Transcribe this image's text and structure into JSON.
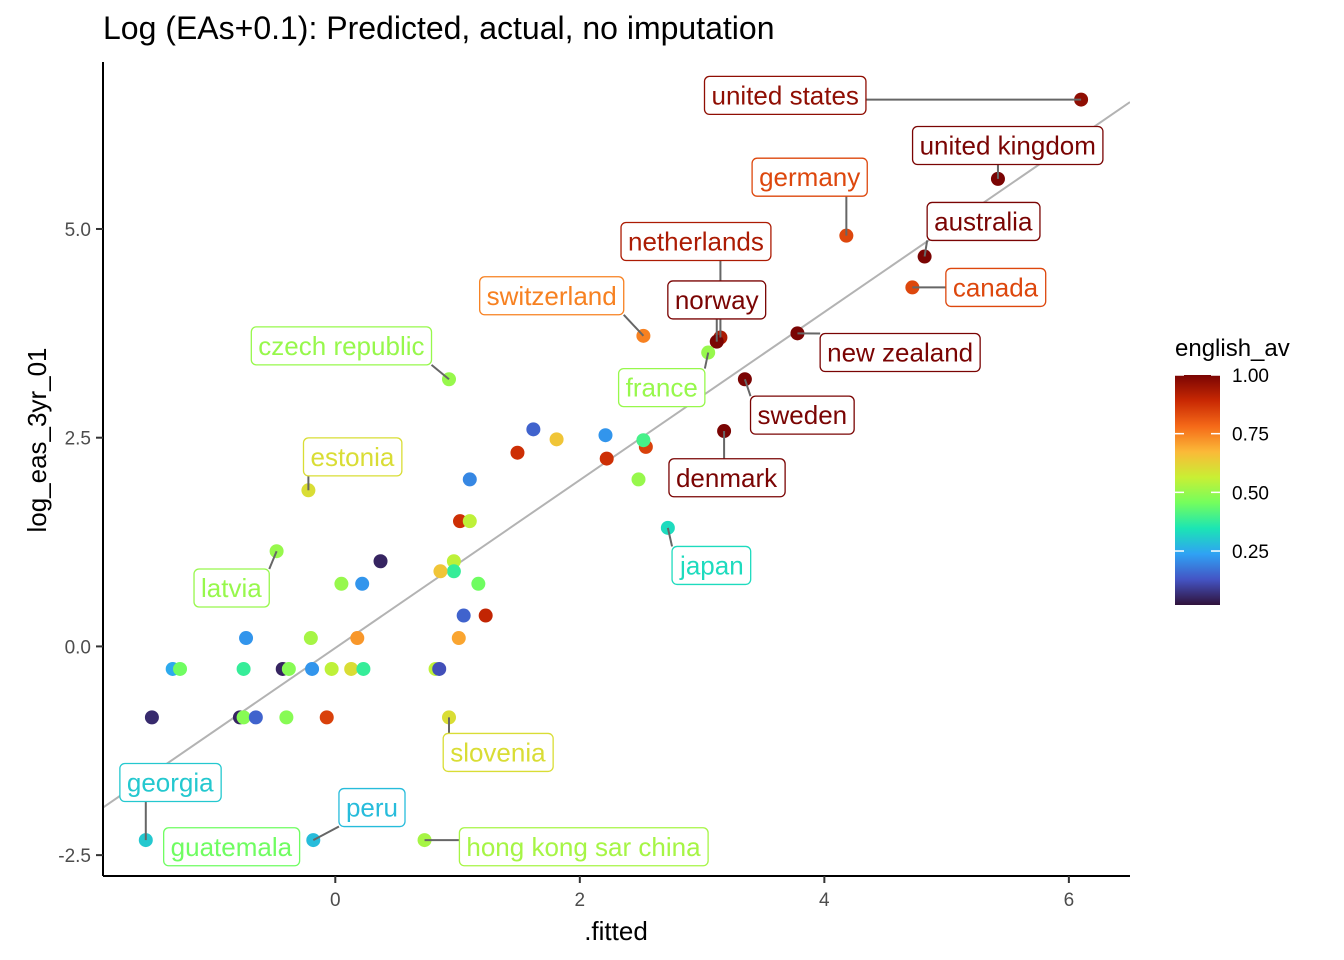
{
  "chart_data": {
    "type": "scatter",
    "title": "Log (EAs+0.1): Predicted, actual, no imputation",
    "xlabel": ".fitted",
    "ylabel": "log_eas_3yr_01",
    "xlim": [
      -1.9,
      6.5
    ],
    "ylim": [
      -2.75,
      7.0
    ],
    "x_ticks": [
      {
        "value": 0,
        "label": "0"
      },
      {
        "value": 2,
        "label": "2"
      },
      {
        "value": 4,
        "label": "4"
      },
      {
        "value": 6,
        "label": "6"
      }
    ],
    "y_ticks": [
      {
        "value": -2.5,
        "label": "-2.5"
      },
      {
        "value": 0,
        "label": "0.0"
      },
      {
        "value": 2.5,
        "label": "2.5"
      },
      {
        "value": 5,
        "label": "5.0"
      }
    ],
    "grid": false,
    "fit_line": {
      "x1": -1.9,
      "y1": -1.93,
      "x2": 6.5,
      "y2": 6.52,
      "color": "#b3b3b3"
    },
    "legend": {
      "title": "english_av",
      "position": "right",
      "colorscale": [
        "#30123b",
        "#4454c4",
        "#2fa2f4",
        "#1be5b4",
        "#74fe5d",
        "#c9ef34",
        "#fbb938",
        "#f56918",
        "#c82803",
        "#7a0403"
      ],
      "ticks": [
        {
          "value": 0.25,
          "label": "0.25"
        },
        {
          "value": 0.5,
          "label": "0.50"
        },
        {
          "value": 0.75,
          "label": "0.75"
        },
        {
          "value": 1.0,
          "label": "1.00"
        }
      ],
      "range": [
        0.02,
        1.0
      ]
    },
    "points": [
      {
        "x": 6.1,
        "y": 6.55,
        "c": 0.97,
        "label": "united states",
        "lx": 3.68,
        "ly": 6.6
      },
      {
        "x": 5.42,
        "y": 5.6,
        "c": 1.0,
        "label": "united kingdom",
        "lx": 5.5,
        "ly": 6.0
      },
      {
        "x": 4.18,
        "y": 4.92,
        "c": 0.84,
        "label": "germany",
        "lx": 3.88,
        "ly": 5.62
      },
      {
        "x": 4.82,
        "y": 4.67,
        "c": 1.0,
        "label": "australia",
        "lx": 5.3,
        "ly": 5.09
      },
      {
        "x": 4.72,
        "y": 4.3,
        "c": 0.84,
        "label": "canada",
        "lx": 5.4,
        "ly": 4.3
      },
      {
        "x": 3.15,
        "y": 3.7,
        "c": 0.93,
        "label": "netherlands",
        "lx": 2.95,
        "ly": 4.85
      },
      {
        "x": 3.12,
        "y": 3.65,
        "c": 1.0,
        "label": "norway",
        "lx": 3.12,
        "ly": 4.15
      },
      {
        "x": 3.78,
        "y": 3.75,
        "c": 1.0,
        "label": "new zealand",
        "lx": 4.62,
        "ly": 3.52
      },
      {
        "x": 2.52,
        "y": 3.72,
        "c": 0.75,
        "label": "switzerland",
        "lx": 1.77,
        "ly": 4.2
      },
      {
        "x": 0.93,
        "y": 3.2,
        "c": 0.5,
        "label": "czech republic",
        "lx": 0.05,
        "ly": 3.6
      },
      {
        "x": 3.05,
        "y": 3.52,
        "c": 0.5,
        "label": "france",
        "lx": 2.67,
        "ly": 3.1
      },
      {
        "x": 3.35,
        "y": 3.2,
        "c": 1.0,
        "label": "sweden",
        "lx": 3.82,
        "ly": 2.77
      },
      {
        "x": 3.18,
        "y": 2.58,
        "c": 1.0,
        "label": "denmark",
        "lx": 3.2,
        "ly": 2.02
      },
      {
        "x": -0.22,
        "y": 1.87,
        "c": 0.6,
        "label": "estonia",
        "lx": 0.14,
        "ly": 2.27
      },
      {
        "x": 2.72,
        "y": 1.42,
        "c": 0.33,
        "label": "japan",
        "lx": 3.08,
        "ly": 0.97
      },
      {
        "x": -0.48,
        "y": 1.14,
        "c": 0.5,
        "label": "latvia",
        "lx": -0.85,
        "ly": 0.7
      },
      {
        "x": 0.93,
        "y": -0.85,
        "c": 0.6,
        "label": "slovenia",
        "lx": 1.33,
        "ly": -1.27
      },
      {
        "x": -1.55,
        "y": -2.32,
        "c": 0.3,
        "label": "georgia",
        "lx": -1.35,
        "ly": -1.63
      },
      {
        "x": -0.18,
        "y": -2.32,
        "c": 0.28,
        "label": "peru",
        "lx": 0.3,
        "ly": -1.93
      },
      {
        "x": -1.32,
        "y": -2.32,
        "c": 0.45,
        "label": "guatemala",
        "lx": -0.85,
        "ly": -2.4
      },
      {
        "x": 0.73,
        "y": -2.32,
        "c": 0.52,
        "label": "hong kong sar china",
        "lx": 2.03,
        "ly": -2.4
      },
      {
        "x": 1.62,
        "y": 2.6,
        "c": 0.15
      },
      {
        "x": 1.49,
        "y": 2.32,
        "c": 0.88
      },
      {
        "x": 1.81,
        "y": 2.48,
        "c": 0.65
      },
      {
        "x": 2.21,
        "y": 2.53,
        "c": 0.22
      },
      {
        "x": 2.22,
        "y": 2.25,
        "c": 0.88
      },
      {
        "x": 2.54,
        "y": 2.39,
        "c": 0.85
      },
      {
        "x": 2.52,
        "y": 2.47,
        "c": 0.4
      },
      {
        "x": 2.48,
        "y": 2.0,
        "c": 0.5
      },
      {
        "x": 1.1,
        "y": 2.0,
        "c": 0.2
      },
      {
        "x": 1.02,
        "y": 1.5,
        "c": 0.88
      },
      {
        "x": 1.1,
        "y": 1.5,
        "c": 0.55
      },
      {
        "x": 0.97,
        "y": 1.02,
        "c": 0.55
      },
      {
        "x": 0.97,
        "y": 0.9,
        "c": 0.38
      },
      {
        "x": 0.86,
        "y": 0.9,
        "c": 0.65
      },
      {
        "x": 1.17,
        "y": 0.75,
        "c": 0.45
      },
      {
        "x": 1.23,
        "y": 0.37,
        "c": 0.9
      },
      {
        "x": 1.05,
        "y": 0.37,
        "c": 0.15
      },
      {
        "x": 1.01,
        "y": 0.1,
        "c": 0.7
      },
      {
        "x": 0.37,
        "y": 1.02,
        "c": 0.05
      },
      {
        "x": 0.05,
        "y": 0.75,
        "c": 0.5
      },
      {
        "x": 0.22,
        "y": 0.75,
        "c": 0.22
      },
      {
        "x": 0.18,
        "y": 0.1,
        "c": 0.72
      },
      {
        "x": -0.2,
        "y": 0.1,
        "c": 0.52
      },
      {
        "x": -0.73,
        "y": 0.1,
        "c": 0.22
      },
      {
        "x": -1.33,
        "y": -0.27,
        "c": 0.25
      },
      {
        "x": -1.27,
        "y": -0.27,
        "c": 0.45
      },
      {
        "x": -0.75,
        "y": -0.27,
        "c": 0.38
      },
      {
        "x": -0.43,
        "y": -0.27,
        "c": 0.05
      },
      {
        "x": -0.38,
        "y": -0.27,
        "c": 0.48
      },
      {
        "x": -0.19,
        "y": -0.27,
        "c": 0.22
      },
      {
        "x": -0.03,
        "y": -0.27,
        "c": 0.55
      },
      {
        "x": 0.13,
        "y": -0.27,
        "c": 0.6
      },
      {
        "x": 0.23,
        "y": -0.27,
        "c": 0.38
      },
      {
        "x": 0.82,
        "y": -0.27,
        "c": 0.55
      },
      {
        "x": 0.85,
        "y": -0.27,
        "c": 0.12
      },
      {
        "x": -1.5,
        "y": -0.85,
        "c": 0.06
      },
      {
        "x": -0.78,
        "y": -0.85,
        "c": 0.05
      },
      {
        "x": -0.75,
        "y": -0.85,
        "c": 0.48
      },
      {
        "x": -0.65,
        "y": -0.85,
        "c": 0.15
      },
      {
        "x": -0.4,
        "y": -0.85,
        "c": 0.48
      },
      {
        "x": -0.07,
        "y": -0.85,
        "c": 0.85
      }
    ]
  }
}
